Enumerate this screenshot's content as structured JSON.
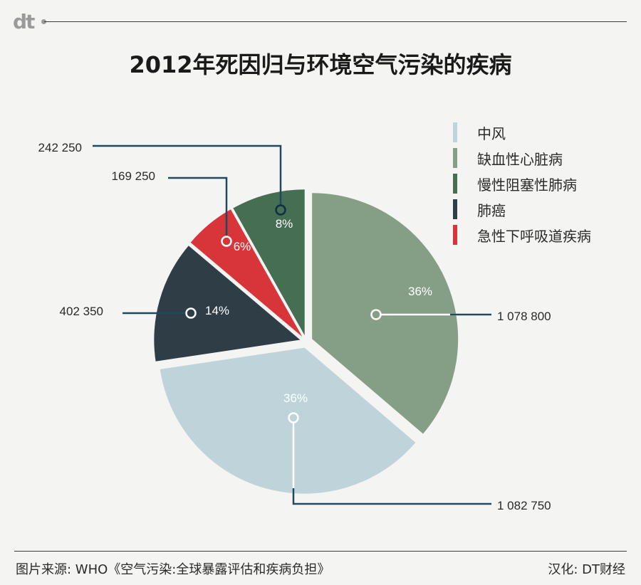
{
  "brand": "dt",
  "title": "2012年死因归与环境空气污染的疾病",
  "source": "图片来源: WHO《空气污染:全球暴露评估和疾病负担》",
  "credit": "汉化: DT财经",
  "chart_data": {
    "type": "pie",
    "title": "2012年死因归与环境空气污染的疾病",
    "legend_position": "top-right",
    "slices": [
      {
        "name": "缺血性心脏病",
        "value": 1078800,
        "value_label": "1 078 800",
        "percent_label": "36%",
        "color": "#849f85"
      },
      {
        "name": "中风",
        "value": 1082750,
        "value_label": "1 082 750",
        "percent_label": "36%",
        "color": "#bfd4da"
      },
      {
        "name": "肺癌",
        "value": 402350,
        "value_label": "402 350",
        "percent_label": "14%",
        "color": "#2f3d47"
      },
      {
        "name": "急性下呼吸道疾病",
        "value": 169250,
        "value_label": "169 250",
        "percent_label": "6%",
        "color": "#d7353a"
      },
      {
        "name": "慢性阻塞性肺病",
        "value": 242250,
        "value_label": "242 250",
        "percent_label": "8%",
        "color": "#466e52"
      }
    ],
    "legend": [
      {
        "label": "中风",
        "color": "#bfd4da"
      },
      {
        "label": "缺血性心脏病",
        "color": "#849f85"
      },
      {
        "label": "慢性阻塞性肺病",
        "color": "#466e52"
      },
      {
        "label": "肺癌",
        "color": "#2f3d47"
      },
      {
        "label": "急性下呼吸道疾病",
        "color": "#d7353a"
      }
    ],
    "leader_line_color": "#1f4a5e"
  }
}
